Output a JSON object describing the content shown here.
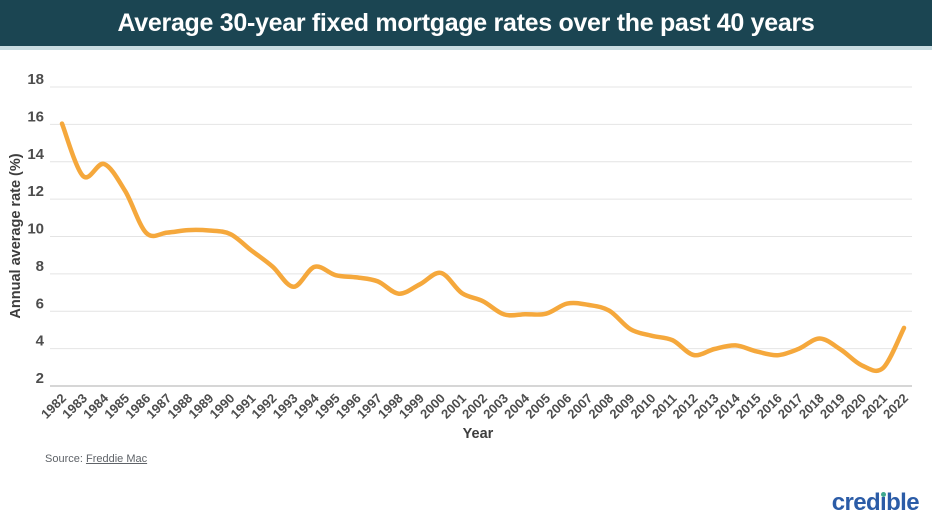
{
  "header": {
    "title": "Average 30-year fixed mortgage rates over the past 40 years",
    "bg_color": "#1B4552",
    "accent_strip_color": "#C9DCE1"
  },
  "chart_data": {
    "type": "line",
    "title": "Average 30-year fixed mortgage rates over the past 40 years",
    "xlabel": "Year",
    "ylabel": "Annual average rate (%)",
    "ylim": [
      2,
      18
    ],
    "yticks": [
      2,
      4,
      6,
      8,
      10,
      12,
      14,
      16,
      18
    ],
    "grid": "horizontal-only",
    "legend": "none",
    "line_color": "#F5A83C",
    "grid_color": "#E4E4E4",
    "axis_line_color": "#C9C9C9",
    "categories": [
      1982,
      1983,
      1984,
      1985,
      1986,
      1987,
      1988,
      1989,
      1990,
      1991,
      1992,
      1993,
      1994,
      1995,
      1996,
      1997,
      1998,
      1999,
      2000,
      2001,
      2002,
      2003,
      2004,
      2005,
      2006,
      2007,
      2008,
      2009,
      2010,
      2011,
      2012,
      2013,
      2014,
      2015,
      2016,
      2017,
      2018,
      2019,
      2020,
      2021,
      2022
    ],
    "values": [
      16.04,
      13.24,
      13.88,
      12.43,
      10.19,
      10.21,
      10.34,
      10.32,
      10.13,
      9.25,
      8.39,
      7.31,
      8.38,
      7.93,
      7.81,
      7.6,
      6.94,
      7.44,
      8.05,
      6.97,
      6.54,
      5.83,
      5.84,
      5.87,
      6.41,
      6.34,
      6.03,
      5.04,
      4.69,
      4.45,
      3.66,
      3.98,
      4.17,
      3.85,
      3.65,
      3.99,
      4.54,
      3.94,
      3.1,
      2.96,
      5.11
    ]
  },
  "source": {
    "prefix": "Source: ",
    "link_text": "Freddie Mac"
  },
  "footer": {
    "brand": "credible",
    "brand_pre": "cred",
    "brand_i": "ı",
    "brand_post": "ble",
    "brand_color": "#2B5CA7",
    "brand_dot_color": "#3FA98E"
  }
}
